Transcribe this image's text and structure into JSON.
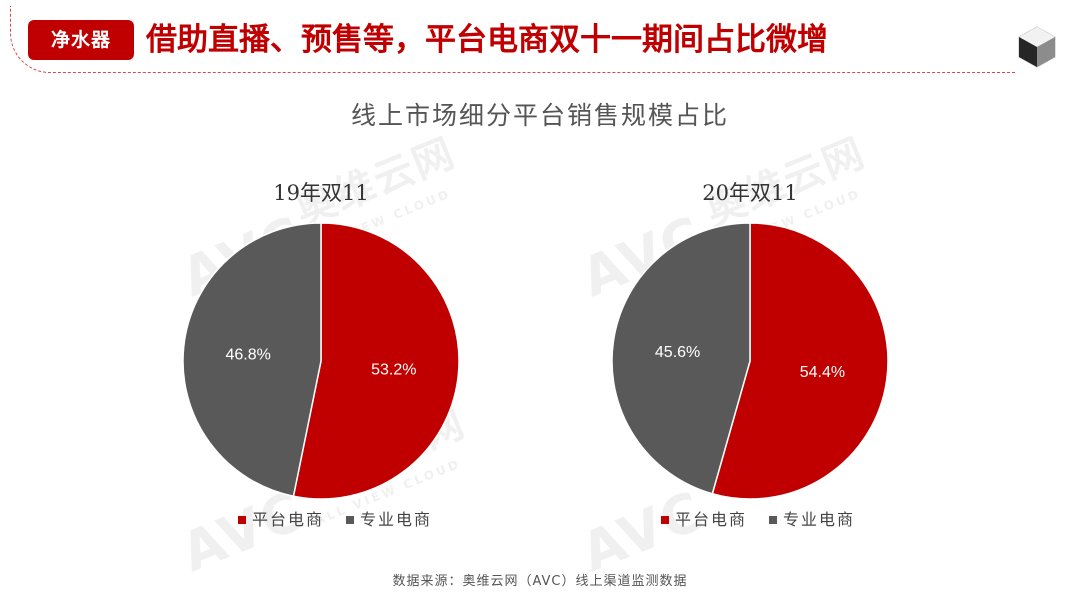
{
  "header": {
    "badge": "净水器",
    "title": "借助直播、预售等，平台电商双十一期间占比微增"
  },
  "watermark": {
    "brand": "AVC",
    "cn": "奥维云网",
    "en": "ALL VIEW CLOUD"
  },
  "chart_title": "线上市场细分平台销售规模占比",
  "source": "数据来源：奥维云网（AVC）线上渠道监测数据",
  "colors": {
    "platform": "#c00000",
    "specialty": "#595959",
    "accent": "#c00000"
  },
  "chart_data": [
    {
      "type": "pie",
      "title": "19年双11",
      "slices": [
        {
          "label": "平台电商",
          "value": 53.2,
          "display": "53.2%"
        },
        {
          "label": "专业电商",
          "value": 46.8,
          "display": "46.8%"
        }
      ],
      "legend": "bottom"
    },
    {
      "type": "pie",
      "title": "20年双11",
      "slices": [
        {
          "label": "平台电商",
          "value": 54.4,
          "display": "54.4%"
        },
        {
          "label": "专业电商",
          "value": 45.6,
          "display": "45.6%"
        }
      ],
      "legend": "bottom"
    }
  ]
}
